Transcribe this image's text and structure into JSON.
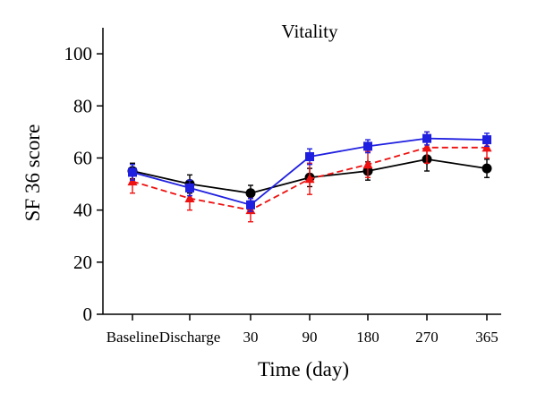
{
  "chart_data": {
    "type": "line",
    "title": "Vitality",
    "xlabel": "Time (day)",
    "ylabel": "SF 36 score",
    "categories": [
      "Baseline",
      "Discharge",
      "30",
      "90",
      "180",
      "270",
      "365"
    ],
    "ylim": [
      0,
      110
    ],
    "yticks": [
      0,
      20,
      40,
      60,
      80,
      100
    ],
    "grid": false,
    "series": [
      {
        "color": "#000000",
        "marker": "circle",
        "dash": false,
        "values": [
          55,
          50,
          46.5,
          52.5,
          55,
          59.5,
          56
        ],
        "errors": [
          3,
          3.5,
          3,
          3.5,
          3.5,
          4.5,
          3.5
        ]
      },
      {
        "color": "#1f1fe0",
        "marker": "square",
        "dash": false,
        "values": [
          54.5,
          48.5,
          42,
          60.5,
          64.5,
          67.5,
          67
        ],
        "errors": [
          3,
          3,
          2.5,
          3,
          2.5,
          2.5,
          2.5
        ]
      },
      {
        "color": "#ee1111",
        "marker": "triangle",
        "dash": true,
        "values": [
          51,
          44.5,
          40,
          52,
          57.5,
          64,
          64
        ],
        "errors": [
          4.5,
          4.5,
          4.5,
          6,
          5,
          6,
          4
        ]
      }
    ]
  }
}
